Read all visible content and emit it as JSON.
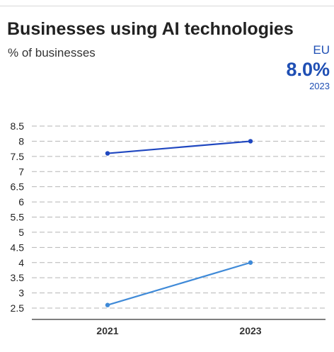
{
  "header": {
    "title": "Businesses using AI technologies",
    "subtitle": "% of businesses"
  },
  "kpi": {
    "region": "EU",
    "value": "8.0%",
    "year": "2023"
  },
  "colors": {
    "accent": "#1f4fb4",
    "series_dark": "#1f47c0",
    "series_light": "#3f8ad8",
    "grid": "#b5b5b5"
  },
  "chart_data": {
    "type": "line",
    "x": [
      "2021",
      "2023"
    ],
    "series": [
      {
        "values": [
          7.6,
          8.0
        ]
      },
      {
        "values": [
          2.6,
          4.0
        ]
      }
    ],
    "y_ticks": [
      "8.5",
      "8",
      "7.5",
      "7",
      "6.5",
      "6",
      "5.5",
      "5",
      "4.5",
      "4",
      "3.5",
      "3",
      "2.5"
    ],
    "ylim": [
      2.5,
      8.5
    ],
    "grid": true,
    "grid_style": "dashed"
  }
}
